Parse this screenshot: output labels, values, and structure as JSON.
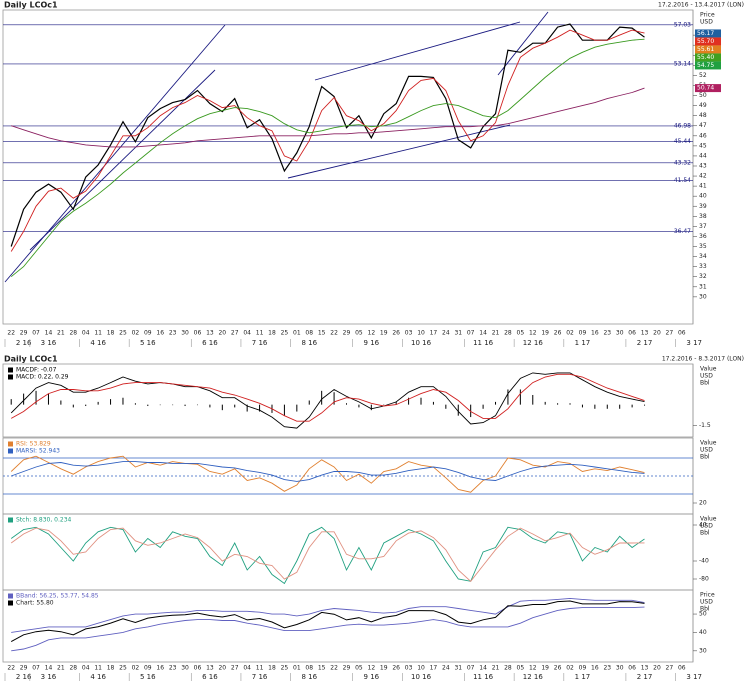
{
  "chart_data": [
    {
      "type": "line",
      "title": "Daily LCOc1",
      "date_range": "17.2.2016 - 13.4.2017 (LON)",
      "axis_label": [
        "Price",
        "USD"
      ],
      "categories": [
        "22",
        "29",
        "07",
        "14",
        "21",
        "28",
        "04",
        "11",
        "18",
        "25",
        "02",
        "09",
        "16",
        "23",
        "30",
        "06",
        "13",
        "20",
        "27",
        "04",
        "11",
        "18",
        "25",
        "01",
        "08",
        "15",
        "22",
        "29",
        "05",
        "12",
        "19",
        "26",
        "03",
        "10",
        "17",
        "24",
        "31",
        "07",
        "14",
        "21",
        "28",
        "05",
        "12",
        "19",
        "26",
        "02",
        "09",
        "16",
        "23",
        "30",
        "06",
        "13",
        "20",
        "27",
        "06"
      ],
      "months": [
        "2 16",
        "3 16",
        "4 16",
        "5 16",
        "6 16",
        "7 16",
        "8 16",
        "9 16",
        "10 16",
        "11 16",
        "12 16",
        "1 17",
        "2 17",
        "3 17"
      ],
      "ylim": [
        27.5,
        58.3
      ],
      "yticks": [
        30,
        31,
        32,
        33,
        34,
        35,
        36,
        37,
        38,
        39,
        40,
        41,
        42,
        43,
        44,
        45,
        46,
        47,
        48,
        49,
        50,
        51,
        52,
        53,
        54,
        55,
        56
      ],
      "levels": [
        57.03,
        53.14,
        46.98,
        45.44,
        43.32,
        41.54,
        36.47
      ],
      "tags": [
        {
          "value": 56.17,
          "label": "56.17",
          "color": "#2060a0"
        },
        {
          "value": 55.7,
          "label": "55.70",
          "color": "#e03020"
        },
        {
          "value": 55.61,
          "label": "55.61",
          "color": "#e08020"
        },
        {
          "value": 55.4,
          "label": "55.40",
          "color": "#40a020"
        },
        {
          "value": 54.75,
          "label": "54.75",
          "color": "#20a040"
        },
        {
          "value": 50.74,
          "label": "50.74",
          "color": "#b02060"
        }
      ],
      "series": [
        {
          "color": "#000000",
          "values": [
            35,
            38.7,
            40.4,
            41.2,
            40.4,
            38.7,
            41.9,
            43.1,
            45.1,
            47.4,
            45.4,
            47.8,
            48.7,
            49.3,
            49.6,
            50.5,
            49.2,
            48.4,
            49.7,
            46.8,
            47.6,
            45.7,
            42.5,
            44.3,
            46.9,
            50.9,
            49.9,
            46.8,
            48,
            45.8,
            48.2,
            49.2,
            51.9,
            51.9,
            51.8,
            49.7,
            45.6,
            44.8,
            46.9,
            48.2,
            54.5,
            54.3,
            55.2,
            55.2,
            56.8,
            57.1,
            55.5,
            55.5,
            55.5,
            56.8,
            56.7,
            55.8,
            null,
            null,
            null
          ]
        },
        {
          "color": "#d02020",
          "values": [
            34.5,
            36.5,
            39,
            40.5,
            40.8,
            39.8,
            40.5,
            42,
            44,
            46,
            46,
            46.8,
            48,
            48.8,
            49.3,
            50,
            49.5,
            48.8,
            49,
            47.8,
            47,
            46.5,
            44,
            43.5,
            45.5,
            48.5,
            49.8,
            48,
            47.5,
            46.5,
            47.2,
            48.5,
            50.5,
            51.5,
            51.7,
            50.5,
            47.5,
            45.5,
            46,
            47.3,
            51,
            53.8,
            54.7,
            55.2,
            55.8,
            56.5,
            56,
            55.5,
            55.5,
            56,
            56.5,
            56.2,
            null,
            null,
            null
          ]
        },
        {
          "color": "#3a9a20",
          "values": [
            32,
            33,
            34.5,
            36,
            37.5,
            38.5,
            39.3,
            40.2,
            41.2,
            42.3,
            43.3,
            44.3,
            45.3,
            46.2,
            47,
            47.7,
            48.2,
            48.5,
            48.8,
            48.7,
            48.4,
            48,
            47.2,
            46.6,
            46.3,
            46.5,
            46.8,
            47,
            47.1,
            46.9,
            47,
            47.3,
            47.9,
            48.5,
            49,
            49.2,
            49,
            48.5,
            48,
            47.8,
            48.5,
            49.6,
            50.7,
            51.8,
            52.8,
            53.7,
            54.3,
            54.8,
            55.1,
            55.3,
            55.5,
            55.6,
            null,
            null,
            null
          ]
        },
        {
          "color": "#8a2060",
          "values": [
            47,
            46.6,
            46.2,
            45.8,
            45.5,
            45.3,
            45.1,
            45,
            44.9,
            44.9,
            44.9,
            45,
            45.1,
            45.2,
            45.3,
            45.5,
            45.6,
            45.7,
            45.8,
            45.9,
            46,
            46,
            46,
            46,
            46,
            46.1,
            46.2,
            46.2,
            46.3,
            46.3,
            46.4,
            46.5,
            46.6,
            46.7,
            46.8,
            46.9,
            46.9,
            46.9,
            47,
            47,
            47.2,
            47.5,
            47.8,
            48.1,
            48.4,
            48.7,
            49,
            49.3,
            49.7,
            50,
            50.3,
            50.74,
            null,
            null,
            null
          ]
        }
      ]
    },
    {
      "type": "line",
      "title": "Daily LCOc1",
      "date_range": "17.2.2016 - 8.3.2017 (LON)",
      "axis_label": [
        "Value",
        "USD",
        "Bbl"
      ],
      "ylim": [
        -2.2,
        2.8
      ],
      "yticks": [
        -1.5
      ],
      "series": [
        {
          "name": "MACDF: -0.07",
          "color": "#000000",
          "style": "bars",
          "values": [
            0.4,
            0.8,
            1.0,
            0.8,
            0.3,
            -0.2,
            -0.1,
            0.2,
            0.4,
            0.5,
            0.1,
            -0.1,
            0,
            0,
            -0.1,
            0,
            -0.2,
            -0.4,
            -0.2,
            -0.5,
            -0.5,
            -0.6,
            -0.8,
            -0.5,
            0.3,
            1.0,
            0.9,
            0.1,
            -0.2,
            -0.4,
            0,
            0.2,
            0.5,
            0.5,
            0.2,
            -0.3,
            -0.8,
            -0.9,
            -0.3,
            0.2,
            1.1,
            1.1,
            0.7,
            0.2,
            0.1,
            0.1,
            -0.2,
            -0.3,
            -0.3,
            -0.3,
            -0.2,
            -0.07,
            null,
            null,
            null
          ]
        },
        {
          "name": "MACD: 0.22, 0.29",
          "color": "#000000",
          "values": [
            -0.6,
            0.3,
            1.2,
            1.6,
            1.4,
            0.9,
            0.9,
            1.2,
            1.6,
            2.0,
            1.7,
            1.5,
            1.6,
            1.5,
            1.3,
            1.3,
            1.0,
            0.5,
            0.5,
            -0.1,
            -0.4,
            -0.9,
            -1.6,
            -1.7,
            -0.9,
            0.4,
            1.1,
            0.6,
            0.2,
            -0.3,
            -0.1,
            0.2,
            0.9,
            1.3,
            1.3,
            0.6,
            -0.5,
            -1.4,
            -1.3,
            -0.8,
            0.8,
            1.9,
            2.3,
            2.2,
            2.3,
            2.3,
            1.8,
            1.3,
            0.9,
            0.6,
            0.4,
            0.22,
            null,
            null,
            null
          ]
        },
        {
          "color": "#d02020",
          "values": [
            -1.0,
            -0.5,
            0.2,
            0.8,
            1.1,
            1.1,
            1.0,
            1.0,
            1.2,
            1.5,
            1.6,
            1.6,
            1.6,
            1.5,
            1.4,
            1.3,
            1.2,
            0.9,
            0.7,
            0.4,
            0.1,
            -0.3,
            -0.8,
            -1.2,
            -1.2,
            -0.6,
            0.2,
            0.5,
            0.4,
            0.1,
            -0.1,
            0,
            0.4,
            0.8,
            1.1,
            0.9,
            0.3,
            -0.5,
            -1.0,
            -1.0,
            -0.3,
            0.8,
            1.6,
            2.0,
            2.2,
            2.2,
            2.0,
            1.6,
            1.2,
            0.9,
            0.6,
            0.29,
            null,
            null,
            null
          ]
        }
      ]
    },
    {
      "type": "line",
      "axis_label": [
        "Value",
        "USD",
        "Bbl"
      ],
      "ylim": [
        10,
        90
      ],
      "yticks": [
        20
      ],
      "ref_lines": [
        70,
        50,
        30
      ],
      "series": [
        {
          "name": "RSI: 53.829",
          "color": "#e08030",
          "values": [
            55,
            68,
            72,
            65,
            58,
            52,
            60,
            66,
            70,
            72,
            60,
            65,
            62,
            66,
            64,
            63,
            55,
            52,
            58,
            45,
            48,
            42,
            33,
            40,
            58,
            68,
            60,
            45,
            52,
            42,
            55,
            58,
            66,
            62,
            60,
            48,
            35,
            32,
            45,
            50,
            70,
            68,
            62,
            60,
            66,
            64,
            55,
            58,
            56,
            60,
            57,
            53.829,
            null,
            null,
            null
          ]
        },
        {
          "name": "MARSI: 52.943",
          "color": "#3060c0",
          "values": [
            50,
            55,
            60,
            64,
            65,
            62,
            61,
            62,
            64,
            66,
            66,
            65,
            65,
            64,
            64,
            64,
            62,
            60,
            59,
            56,
            54,
            51,
            46,
            44,
            46,
            51,
            55,
            55,
            54,
            51,
            51,
            53,
            56,
            58,
            60,
            58,
            54,
            49,
            46,
            45,
            50,
            55,
            59,
            61,
            62,
            63,
            62,
            60,
            58,
            56,
            54,
            52.943,
            null,
            null,
            null
          ]
        }
      ]
    },
    {
      "type": "line",
      "axis_label": [
        "Value",
        "USD",
        "Bbl"
      ],
      "ylim": [
        -100,
        60
      ],
      "yticks": [
        40,
        -40,
        -80
      ],
      "series": [
        {
          "name": "Stch: 8.830, 0.234",
          "color": "#20a080",
          "values": [
            10,
            30,
            35,
            20,
            -10,
            -40,
            0,
            25,
            35,
            30,
            -20,
            10,
            -10,
            25,
            15,
            10,
            -30,
            -50,
            0,
            -60,
            -30,
            -70,
            -90,
            -40,
            20,
            35,
            10,
            -60,
            -10,
            -60,
            0,
            15,
            30,
            20,
            5,
            -40,
            -80,
            -85,
            -20,
            -10,
            35,
            30,
            10,
            0,
            25,
            20,
            -40,
            -10,
            -20,
            15,
            -10,
            8.83,
            null,
            null,
            null
          ]
        },
        {
          "color": "#e09080",
          "values": [
            0,
            20,
            33,
            28,
            5,
            -25,
            -20,
            10,
            30,
            33,
            5,
            -5,
            0,
            10,
            20,
            12,
            -10,
            -40,
            -25,
            -30,
            -45,
            -50,
            -80,
            -65,
            -10,
            25,
            25,
            -25,
            -35,
            -35,
            -30,
            5,
            22,
            27,
            12,
            -15,
            -60,
            -85,
            -50,
            -15,
            15,
            33,
            20,
            5,
            12,
            22,
            -10,
            -25,
            -15,
            0,
            0,
            0.234,
            null,
            null,
            null
          ]
        }
      ]
    },
    {
      "type": "line",
      "axis_label": [
        "Price",
        "USD",
        "Bbl"
      ],
      "ylim": [
        25,
        62
      ],
      "yticks": [
        50,
        40,
        30
      ],
      "overlay_price": true,
      "price_legend": "Chart: 55.80",
      "series": [
        {
          "name": "BBand: 56.25, 53.77, 54.85",
          "color": "#6060c0",
          "values": [
            40,
            41,
            42,
            43,
            43,
            43,
            43,
            45,
            47,
            49,
            50,
            50,
            50.5,
            51,
            51,
            52,
            52,
            51.5,
            51.5,
            51.5,
            51,
            50,
            50,
            49,
            50,
            52,
            53,
            52.5,
            52,
            51,
            50.5,
            51,
            53,
            54,
            54,
            54,
            53,
            52,
            51,
            50,
            54,
            57,
            57.5,
            57.5,
            58,
            58.5,
            58,
            57.5,
            57.5,
            57.5,
            57.5,
            56.25,
            null,
            null,
            null
          ]
        },
        {
          "color": "#6060c0",
          "values": [
            30,
            31,
            33,
            36,
            37,
            37,
            37,
            38,
            39,
            40,
            42,
            43,
            44.5,
            45.5,
            46.5,
            47,
            47,
            46.5,
            46.5,
            45,
            44,
            42.5,
            41,
            41,
            41,
            42,
            43,
            44,
            44.5,
            44,
            44,
            44.5,
            45,
            46,
            47,
            46,
            44,
            43,
            43,
            43,
            43,
            45,
            48,
            50,
            52,
            53,
            53.5,
            53.5,
            53.5,
            53.5,
            53.5,
            53.77,
            null,
            null,
            null
          ]
        }
      ]
    }
  ]
}
